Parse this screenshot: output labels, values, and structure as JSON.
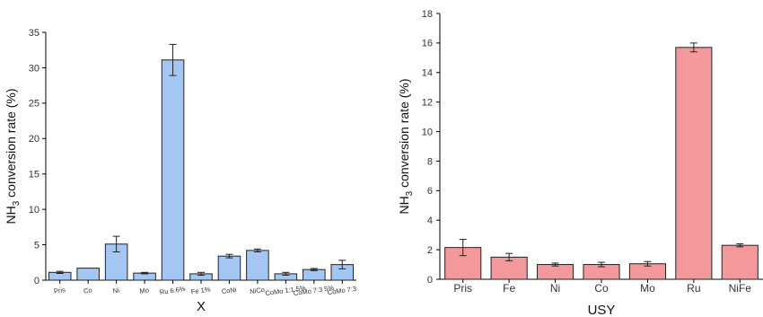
{
  "chart_data": [
    {
      "type": "bar",
      "title": "",
      "xlabel": "X",
      "ylabel_main": "NH",
      "ylabel_sub": "3",
      "ylabel_rest": " conversion rate (%)",
      "ylim": [
        0,
        35
      ],
      "yticks": [
        0,
        5,
        10,
        15,
        20,
        25,
        30,
        35
      ],
      "grid": false,
      "bar_color": "#a4c6f3",
      "categories": [
        "Pris",
        "Co",
        "Ni",
        "Mo",
        "Ru 6.6%",
        "Fe 1%",
        "CoNi",
        "NiCo",
        "CoMo 1:1 5%",
        "CoMo 7:3 5%",
        "CoMo 7:3"
      ],
      "values": [
        1.1,
        1.7,
        5.1,
        1.0,
        31.1,
        0.9,
        3.4,
        4.2,
        0.9,
        1.5,
        2.2
      ],
      "errors": [
        0.15,
        0.0,
        1.1,
        0.1,
        2.2,
        0.2,
        0.25,
        0.2,
        0.2,
        0.15,
        0.6
      ]
    },
    {
      "type": "bar",
      "title": "",
      "xlabel": "USY",
      "ylabel_main": "NH",
      "ylabel_sub": "3",
      "ylabel_rest": " conversion rate (%)",
      "ylim": [
        0,
        18
      ],
      "yticks": [
        0,
        2,
        4,
        6,
        8,
        10,
        12,
        14,
        16,
        18
      ],
      "grid": false,
      "bar_color": "#f4999b",
      "categories": [
        "Pris",
        "Fe",
        "Ni",
        "Co",
        "Mo",
        "Ru",
        "NiFe"
      ],
      "values": [
        2.15,
        1.5,
        1.0,
        1.0,
        1.05,
        15.7,
        2.3
      ],
      "errors": [
        0.55,
        0.25,
        0.1,
        0.15,
        0.15,
        0.3,
        0.1
      ]
    }
  ]
}
